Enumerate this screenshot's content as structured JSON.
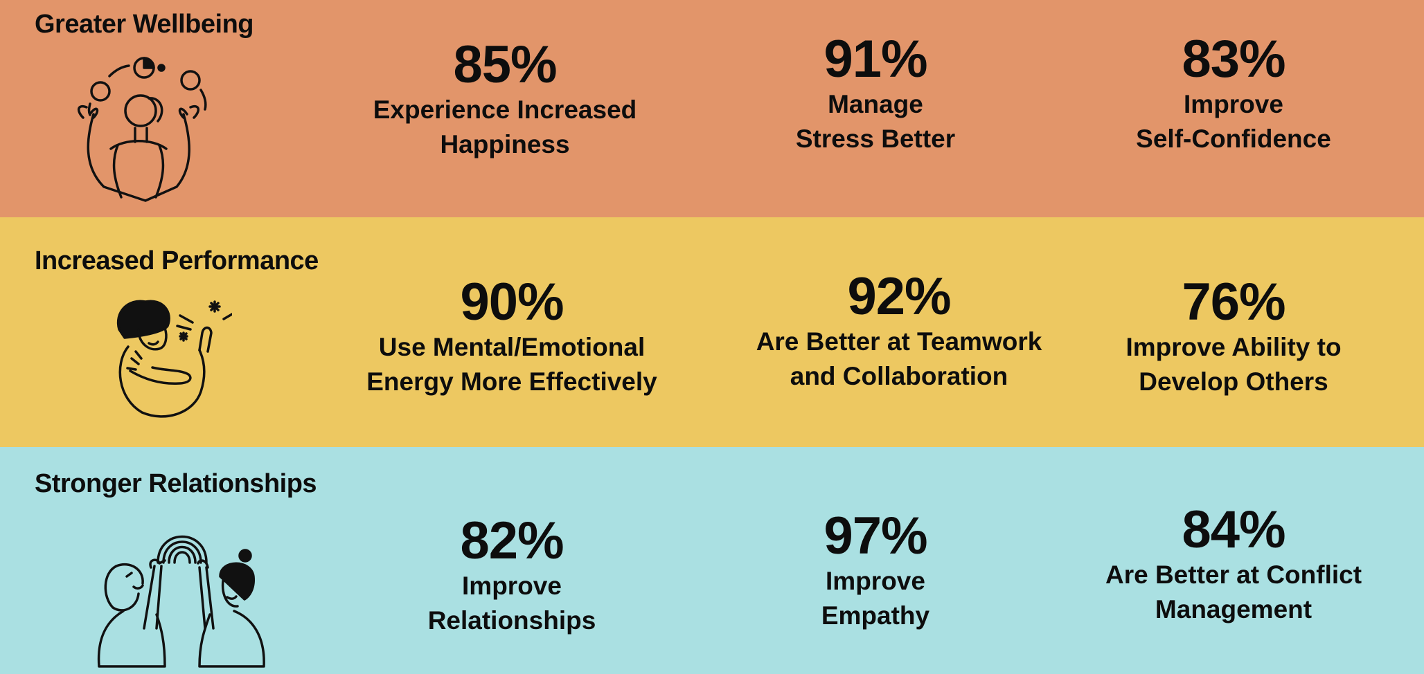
{
  "colors": {
    "wellbeing": "#E2956A",
    "performance": "#EDC861",
    "relationships": "#AAE0E2",
    "text": "#0D0D0D"
  },
  "sections": [
    {
      "title": "Greater Wellbeing",
      "icon": "juggling-person-icon",
      "stats": [
        {
          "percent": "85%",
          "label": "Experience Increased\nHappiness"
        },
        {
          "percent": "91%",
          "label": "Manage\nStress Better"
        },
        {
          "percent": "83%",
          "label": "Improve\nSelf-Confidence"
        }
      ]
    },
    {
      "title": "Increased Performance",
      "icon": "self-hug-person-icon",
      "stats": [
        {
          "percent": "90%",
          "label": "Use Mental/Emotional\nEnergy More Effectively"
        },
        {
          "percent": "92%",
          "label": "Are Better at Teamwork\nand Collaboration"
        },
        {
          "percent": "76%",
          "label": "Improve Ability to\nDevelop Others"
        }
      ]
    },
    {
      "title": "Stronger Relationships",
      "icon": "two-people-rainbow-icon",
      "stats": [
        {
          "percent": "82%",
          "label": "Improve\nRelationships"
        },
        {
          "percent": "97%",
          "label": "Improve\nEmpathy"
        },
        {
          "percent": "84%",
          "label": "Are Better at Conflict\nManagement"
        }
      ]
    }
  ]
}
